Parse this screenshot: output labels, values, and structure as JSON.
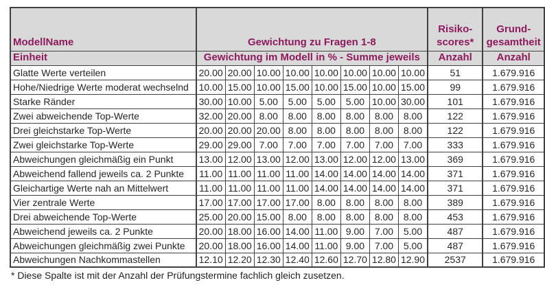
{
  "colors": {
    "header_text": "#8e1a5e",
    "header_bg": "#d9d9d9",
    "border": "#404040",
    "data_text": "#262626"
  },
  "table": {
    "header": {
      "modellname": "ModellName",
      "gewichtung_group": "Gewichtung zu Fragen 1-8",
      "risikoscores_line1": "Risiko-",
      "risikoscores_line2": "scores*",
      "grundgesamtheit_line1": "Grund-",
      "grundgesamtheit_line2": "gesamtheit",
      "einheit": "Einheit",
      "gewichtung_sub": "Gewichtung im Modell in % - Summe jeweils",
      "anzahl_risiko": "Anzahl",
      "anzahl_grund": "Anzahl"
    },
    "rows": [
      {
        "label": "Glatte Werte verteilen",
        "weights": [
          "20.00",
          "20.00",
          "10.00",
          "10.00",
          "10.00",
          "10.00",
          "10.00",
          "10.00"
        ],
        "risikoscore": "51",
        "grundgesamtheit": "1.679.916"
      },
      {
        "label": "Hohe/Niedrige Werte moderat wechselnd",
        "weights": [
          "10.00",
          "15.00",
          "10.00",
          "15.00",
          "10.00",
          "15.00",
          "10.00",
          "15.00"
        ],
        "risikoscore": "99",
        "grundgesamtheit": "1.679.916"
      },
      {
        "label": "Starke Ränder",
        "weights": [
          "30.00",
          "10.00",
          "5.00",
          "5.00",
          "5.00",
          "5.00",
          "10.00",
          "30.00"
        ],
        "risikoscore": "101",
        "grundgesamtheit": "1.679.916"
      },
      {
        "label": "Zwei abweichende Top-Werte",
        "weights": [
          "32.00",
          "20.00",
          "8.00",
          "8.00",
          "8.00",
          "8.00",
          "8.00",
          "8.00"
        ],
        "risikoscore": "122",
        "grundgesamtheit": "1.679.916"
      },
      {
        "label": "Drei gleichstarke Top-Werte",
        "weights": [
          "20.00",
          "20.00",
          "20.00",
          "8.00",
          "8.00",
          "8.00",
          "8.00",
          "8.00"
        ],
        "risikoscore": "122",
        "grundgesamtheit": "1.679.916"
      },
      {
        "label": "Zwei gleichstarke Top-Werte",
        "weights": [
          "29.00",
          "29.00",
          "7.00",
          "7.00",
          "7.00",
          "7.00",
          "7.00",
          "7.00"
        ],
        "risikoscore": "333",
        "grundgesamtheit": "1.679.916"
      },
      {
        "label": "Abweichungen gleichmäßig ein Punkt",
        "weights": [
          "13.00",
          "12.00",
          "13.00",
          "12.00",
          "13.00",
          "12.00",
          "12.00",
          "13.00"
        ],
        "risikoscore": "369",
        "grundgesamtheit": "1.679.916"
      },
      {
        "label": "Abweichend fallend jeweils ca. 2 Punkte",
        "weights": [
          "11.00",
          "11.00",
          "11.00",
          "11.00",
          "14.00",
          "14.00",
          "14.00",
          "14.00"
        ],
        "risikoscore": "371",
        "grundgesamtheit": "1.679.916"
      },
      {
        "label": "Gleichartige Werte nah an Mittelwert",
        "weights": [
          "11.00",
          "11.00",
          "11.00",
          "11.00",
          "14.00",
          "14.00",
          "14.00",
          "14.00"
        ],
        "risikoscore": "371",
        "grundgesamtheit": "1.679.916"
      },
      {
        "label": "Vier zentrale Werte",
        "weights": [
          "17.00",
          "17.00",
          "17.00",
          "17.00",
          "8.00",
          "8.00",
          "8.00",
          "8.00"
        ],
        "risikoscore": "389",
        "grundgesamtheit": "1.679.916"
      },
      {
        "label": "Drei abweichende Top-Werte",
        "weights": [
          "25.00",
          "20.00",
          "15.00",
          "8.00",
          "8.00",
          "8.00",
          "8.00",
          "8.00"
        ],
        "risikoscore": "453",
        "grundgesamtheit": "1.679.916"
      },
      {
        "label": "Abweichend jeweils ca. 2 Punkte",
        "weights": [
          "20.00",
          "18.00",
          "16.00",
          "14.00",
          "11.00",
          "9.00",
          "7.00",
          "5.00"
        ],
        "risikoscore": "487",
        "grundgesamtheit": "1.679.916"
      },
      {
        "label": "Abweichungen gleichmäßig zwei Punkte",
        "weights": [
          "20.00",
          "18.00",
          "16.00",
          "14.00",
          "11.00",
          "9.00",
          "7.00",
          "5.00"
        ],
        "risikoscore": "487",
        "grundgesamtheit": "1.679.916"
      },
      {
        "label": "Abweichungen Nachkommastellen",
        "weights": [
          "12.10",
          "12.20",
          "12.30",
          "12.40",
          "12.60",
          "12.70",
          "12.80",
          "12.90"
        ],
        "risikoscore": "2537",
        "grundgesamtheit": "1.679.916"
      }
    ],
    "footnote": "* Diese Spalte ist mit der Anzahl der Prüfungstermine fachlich gleich zusetzen."
  }
}
